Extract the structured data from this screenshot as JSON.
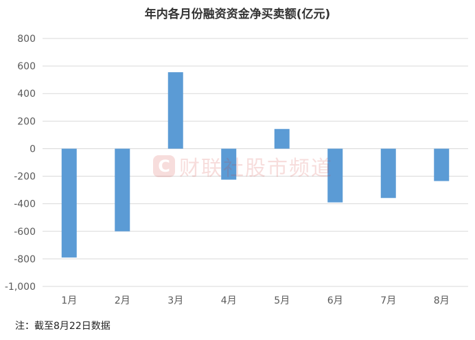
{
  "chart_data": {
    "type": "bar",
    "title": "年内各月份融资资金净买卖额(亿元)",
    "categories": [
      "1月",
      "2月",
      "3月",
      "4月",
      "5月",
      "6月",
      "7月",
      "8月"
    ],
    "values": [
      -790,
      -600,
      555,
      -225,
      143,
      -390,
      -358,
      -235
    ],
    "ylim": [
      -1000,
      800
    ],
    "yticks": [
      800,
      600,
      400,
      200,
      0,
      -200,
      -400,
      -600,
      -800,
      -1000
    ],
    "ytick_labels": [
      "800",
      "600",
      "400",
      "200",
      "0",
      "-200",
      "-400",
      "-600",
      "-800",
      "-1,000"
    ],
    "bar_color": "#5b9bd5",
    "grid": true,
    "legend": "none"
  },
  "watermark": {
    "logo": "C",
    "text": "财联社股市频道"
  },
  "footnote": "注：截至8月22日数据"
}
